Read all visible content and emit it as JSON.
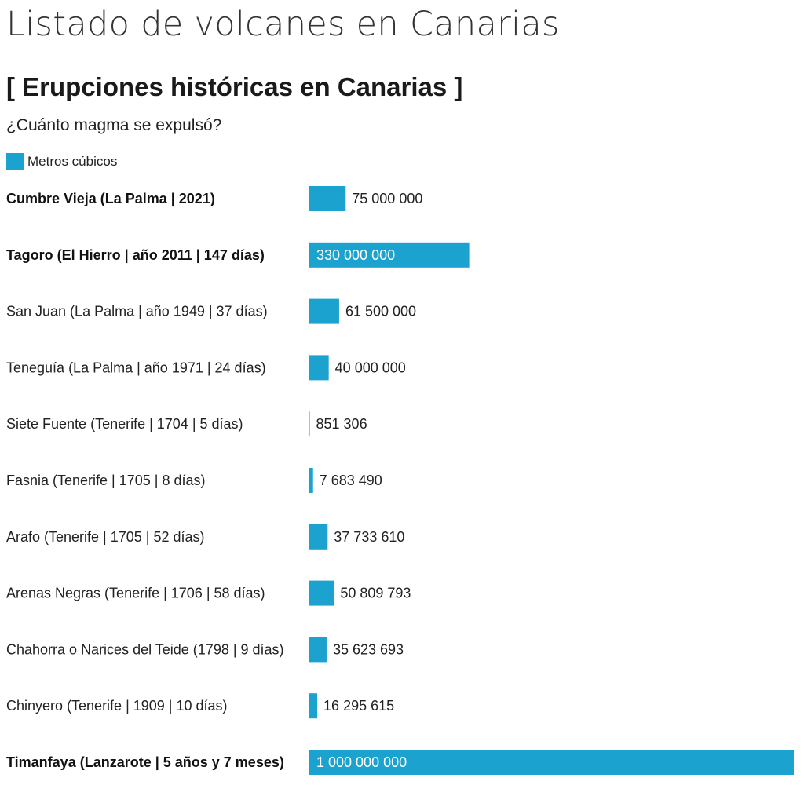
{
  "page": {
    "title": "Listado de volcanes en Canarias"
  },
  "colors": {
    "bar": "#1ba2cf",
    "text": "#222222",
    "inside_text": "#ffffff"
  },
  "chart_data": {
    "type": "bar",
    "orientation": "horizontal",
    "title": "[ Erupciones históricas en Canarias ]",
    "subtitle": "¿Cuánto magma se expulsó?",
    "legend": {
      "placement": "top-left",
      "entries": [
        "Metros cúbicos"
      ]
    },
    "grid": false,
    "xlim": [
      0,
      1000000000
    ],
    "categories": [
      "Cumbre Vieja (La Palma | 2021)",
      "Tagoro (El Hierro | año 2011 | 147 días)",
      "San Juan (La Palma | año 1949 | 37 días)",
      "Teneguía (La Palma | año 1971 | 24 días)",
      "Siete Fuente (Tenerife | 1704 | 5 días)",
      "Fasnia (Tenerife | 1705 | 8 días)",
      "Arafo (Tenerife | 1705 | 52 días)",
      "Arenas Negras (Tenerife | 1706 | 58 días)",
      "Chahorra o Narices del Teide (1798 | 9 días)",
      "Chinyero (Tenerife | 1909 | 10 días)",
      "Timanfaya (Lanzarote | 5 años y 7 meses)"
    ],
    "bold_categories": [
      true,
      true,
      false,
      false,
      false,
      false,
      false,
      false,
      false,
      false,
      true
    ],
    "series": [
      {
        "name": "Metros cúbicos",
        "values": [
          75000000,
          330000000,
          61500000,
          40000000,
          851306,
          7683490,
          37733610,
          50809793,
          35623693,
          16295615,
          1000000000
        ],
        "value_labels": [
          "75 000 000",
          "330 000 000",
          "61 500 000",
          "40 000 000",
          "851 306",
          "7 683 490",
          "37 733 610",
          "50 809 793",
          "35 623 693",
          "16 295 615",
          "1 000 000 000"
        ]
      }
    ]
  }
}
